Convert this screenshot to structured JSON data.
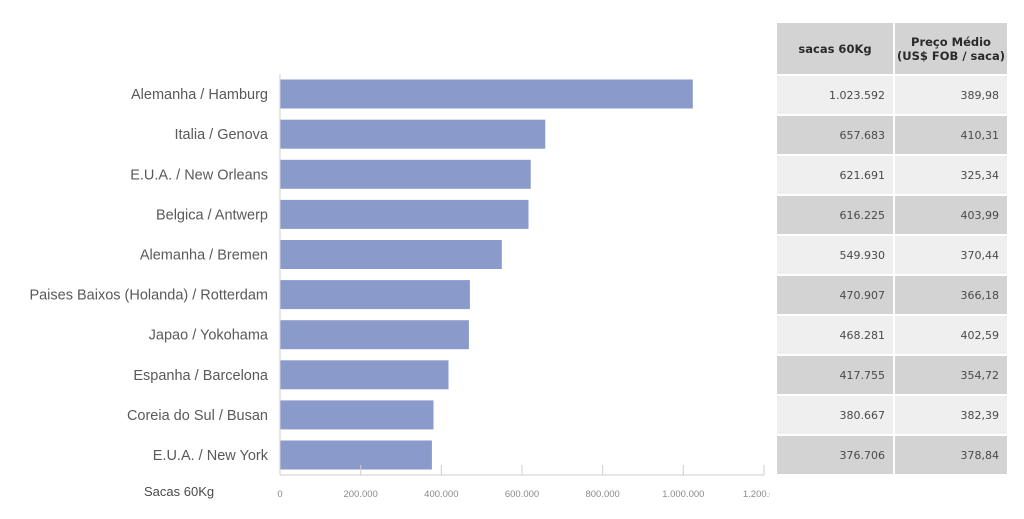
{
  "chart_data": {
    "type": "bar",
    "orientation": "horizontal",
    "xlabel": "Sacas 60Kg",
    "xlim": [
      0,
      1200000
    ],
    "x_ticks": [
      "0",
      "200.000",
      "400.000",
      "600.000",
      "800.000",
      "1.000.000",
      "1.200.000"
    ],
    "x_tick_values": [
      0,
      200000,
      400000,
      600000,
      800000,
      1000000,
      1200000
    ],
    "grid": false,
    "bar_color": "#8a9bcb",
    "categories": [
      "Alemanha / Hamburg",
      "Italia / Genova",
      "E.U.A. / New Orleans",
      "Belgica / Antwerp",
      "Alemanha / Bremen",
      "Paises Baixos (Holanda) / Rotterdam",
      "Japao / Yokohama",
      "Espanha / Barcelona",
      "Coreia do Sul  / Busan",
      "E.U.A. / New York"
    ],
    "values": [
      1023592,
      657683,
      621691,
      616225,
      549930,
      470907,
      468281,
      417755,
      380667,
      376706
    ]
  },
  "table": {
    "headers": [
      "sacas 60Kg",
      "Preço Médio (US$ FOB / saca)"
    ],
    "rows": [
      [
        "1.023.592",
        "389,98"
      ],
      [
        "657.683",
        "410,31"
      ],
      [
        "621.691",
        "325,34"
      ],
      [
        "616.225",
        "403,99"
      ],
      [
        "549.930",
        "370,44"
      ],
      [
        "470.907",
        "366,18"
      ],
      [
        "468.281",
        "402,59"
      ],
      [
        "417.755",
        "354,72"
      ],
      [
        "380.667",
        "382,39"
      ],
      [
        "376.706",
        "378,84"
      ]
    ]
  }
}
